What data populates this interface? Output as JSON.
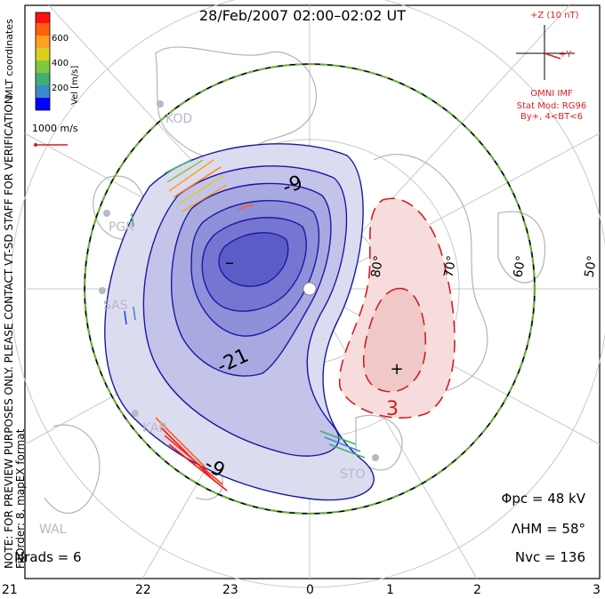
{
  "title": "28/Feb/2007 02:00–02:02 UT",
  "side_note": "NOTE: FOR PREVIEW PURPOSES ONLY. PLEASE CONTACT VT-SD STAFF FOR VERIFICATION.",
  "side_note_2": "FitOrder: 8, mapEX format",
  "coordinates_label": "MLT coordinates",
  "velocity_scale": {
    "label": "Vel [m/s]",
    "ticks": [
      "600",
      "400",
      "200"
    ],
    "colors": [
      "#0000ff",
      "#2050e0",
      "#3a8ad0",
      "#40b070",
      "#80c840",
      "#d8d020",
      "#ffa020",
      "#ff6010",
      "#ff1010"
    ]
  },
  "reference_vector": "1000 m/s",
  "imf": {
    "z_label": "+Z (10 nT)",
    "y_label": "+Y",
    "source": "OMNI IMF",
    "model": "Stat Mod: RG96",
    "condition": "By+, 4<BT<6"
  },
  "stats": {
    "phi_pc": "Φpc = 48 kV",
    "lambda_hm": "ΛHM = 58°",
    "n_vc": "Nvc = 136",
    "n_rads": "Nrads = 6"
  },
  "mlt_ticks": [
    "21",
    "22",
    "23",
    "0",
    "1",
    "2",
    "3"
  ],
  "latitude_labels": [
    "80°",
    "70°",
    "60°",
    "50°"
  ],
  "stations": [
    "KOD",
    "PGR",
    "SAS",
    "KAP",
    "STO",
    "WAL"
  ],
  "contour_labels": [
    "-9",
    "-21",
    "-9",
    "3"
  ],
  "extrema_marks": [
    "–",
    "+"
  ],
  "colors": {
    "negative": "#1a1aa0",
    "positive": "#d02020",
    "hm_boundary": "#60c020"
  }
}
